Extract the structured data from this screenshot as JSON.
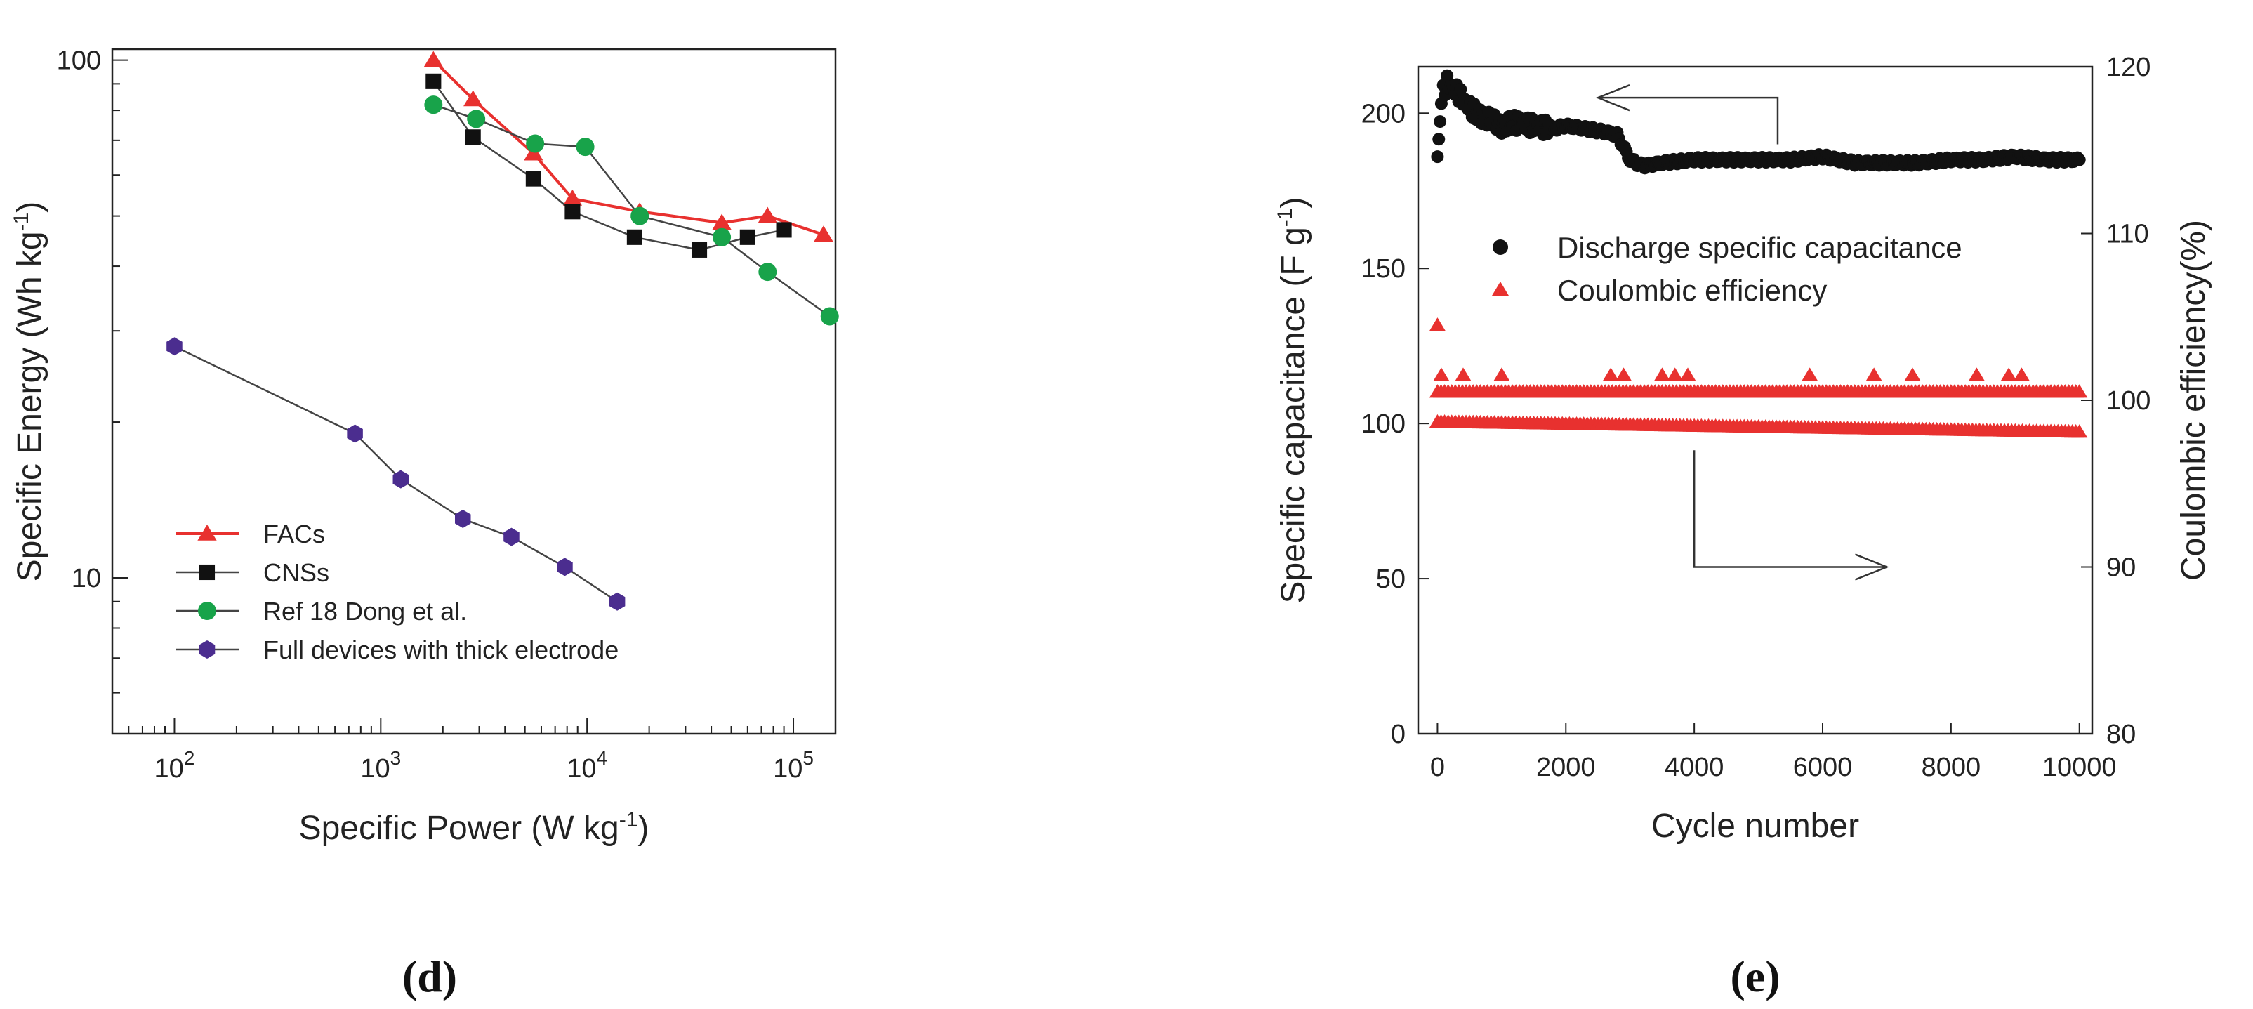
{
  "panel_labels": {
    "d": "d",
    "e": "e"
  },
  "colors": {
    "facs": "#e8312f",
    "cnss": "#111111",
    "ref18": "#18a34a",
    "full": "#4b2d8f",
    "axis": "#222222",
    "capacitance": "#111111",
    "efficiency": "#e8312f"
  },
  "chart_data": [
    {
      "type": "line",
      "scale": "log-log",
      "title": "",
      "xlabel": "Specific Power (W kg",
      "xlabel_sup": "-1",
      "xlabel_tail": ")",
      "ylabel": "Specific Energy (Wh kg",
      "ylabel_sup": "-1",
      "ylabel_tail": ")",
      "xlim": [
        50,
        160000
      ],
      "ylim": [
        5,
        105
      ],
      "x_ticks": [
        {
          "value": 100,
          "base": "10",
          "exp": "2"
        },
        {
          "value": 1000,
          "base": "10",
          "exp": "3"
        },
        {
          "value": 10000,
          "base": "10",
          "exp": "4"
        },
        {
          "value": 100000,
          "base": "10",
          "exp": "5"
        }
      ],
      "y_ticks": [
        {
          "value": 10,
          "label": "10"
        },
        {
          "value": 100,
          "label": "100"
        }
      ],
      "legend_placement": "bottom-left",
      "series": [
        {
          "name": "FACs",
          "marker": "triangle",
          "color_key": "facs",
          "x": [
            1800,
            2800,
            5500,
            8500,
            18000,
            45000,
            75000,
            140000
          ],
          "y": [
            100,
            84,
            66,
            54,
            51,
            48.5,
            50,
            46
          ]
        },
        {
          "name": "CNSs",
          "marker": "square",
          "color_key": "cnss",
          "x": [
            1800,
            2800,
            5500,
            8500,
            17000,
            35000,
            60000,
            90000
          ],
          "y": [
            91,
            71,
            59,
            51,
            45.5,
            43,
            45.5,
            47
          ]
        },
        {
          "name": "Ref 18 Dong et al.",
          "marker": "circle",
          "color_key": "ref18",
          "x": [
            1800,
            2900,
            5600,
            9800,
            18000,
            45000,
            75000,
            150000
          ],
          "y": [
            82,
            77,
            69,
            68,
            50,
            45.5,
            39,
            32
          ]
        },
        {
          "name": "Full devices with thick electrode",
          "marker": "hexagon",
          "color_key": "full",
          "x": [
            100,
            750,
            1250,
            2500,
            4300,
            7800,
            14000
          ],
          "y": [
            28,
            19,
            15.5,
            13,
            12,
            10.5,
            9
          ]
        }
      ]
    },
    {
      "type": "scatter",
      "title": "",
      "xlabel": "Cycle number",
      "ylabel": "Specific capacitance (F g",
      "ylabel_sup": "-1",
      "ylabel_tail": ")",
      "y2label": "Coulombic efficiency(%)",
      "xlim": [
        -300,
        10200
      ],
      "ylim": [
        0,
        215
      ],
      "y2lim": [
        80,
        120
      ],
      "x_ticks": [
        0,
        2000,
        4000,
        6000,
        8000,
        10000
      ],
      "y_ticks": [
        0,
        50,
        100,
        150,
        200
      ],
      "y2_ticks": [
        80,
        90,
        100,
        110,
        120
      ],
      "legend_placement": "center-right",
      "annotations": [
        {
          "text": "arrow pointing left toward capacitance axis",
          "from": [
            5300,
            190
          ],
          "to": [
            2500,
            205
          ]
        },
        {
          "text": "arrow pointing right toward efficiency axis",
          "from": [
            4000,
            97
          ],
          "to": [
            7000,
            90
          ]
        }
      ],
      "series": [
        {
          "name": "Discharge specific capacitance",
          "axis": "left",
          "marker": "circle",
          "color_key": "capacitance",
          "x": [
            0,
            60,
            150,
            300,
            450,
            600,
            800,
            1000,
            1200,
            1500,
            1800,
            2000,
            2300,
            2600,
            2800,
            3000,
            3200,
            3500,
            4000,
            4500,
            5000,
            5500,
            6000,
            6500,
            7000,
            7500,
            8000,
            8500,
            9000,
            9500,
            10000
          ],
          "y": [
            186,
            205,
            210,
            207,
            203,
            200,
            198,
            196,
            197,
            196,
            195,
            196,
            195,
            194,
            193,
            185,
            183,
            184,
            185,
            185,
            185,
            185,
            186,
            184,
            184,
            184,
            185,
            185,
            186,
            185,
            185
          ]
        },
        {
          "name": "Coulombic efficiency",
          "axis": "right",
          "marker": "triangle",
          "color_key": "efficiency",
          "x": [
            0,
            60,
            400,
            1000,
            2700,
            2900,
            3500,
            3700,
            3900,
            5800,
            6800,
            7400,
            8400,
            8900,
            9100
          ],
          "y": [
            104.5,
            101.5,
            101.5,
            101.5,
            101.5,
            101.5,
            101.5,
            101.5,
            101.5,
            101.5,
            101.5,
            101.5,
            101.5,
            101.5,
            101.5
          ]
        },
        {
          "name": "Coulombic efficiency band (upper)",
          "axis": "right",
          "marker": "triangle",
          "color_key": "efficiency",
          "x": [
            0,
            10000
          ],
          "y": [
            100.5,
            100.5
          ]
        },
        {
          "name": "Coulombic efficiency band (lower)",
          "axis": "right",
          "marker": "triangle",
          "color_key": "efficiency",
          "x": [
            0,
            10000
          ],
          "y": [
            98.7,
            98.1
          ]
        }
      ]
    }
  ]
}
